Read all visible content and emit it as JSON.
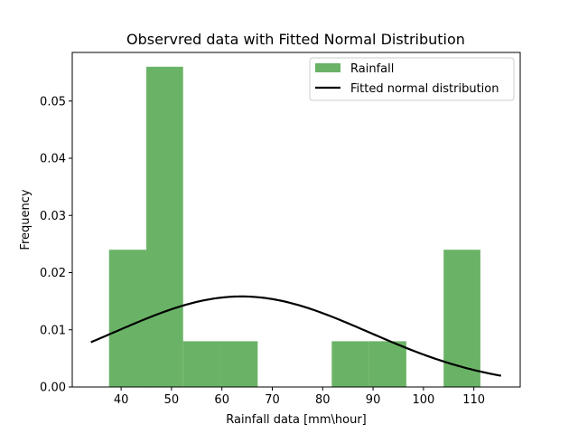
{
  "chart_data": {
    "type": "bar",
    "title": "Observred data with Fitted Normal Distribution",
    "xlabel": "Rainfall data [mm\\hour]",
    "ylabel": "Frequency",
    "xlim": [
      30.3,
      119.2
    ],
    "ylim": [
      0,
      0.0585
    ],
    "x_ticks": [
      40,
      50,
      60,
      70,
      80,
      90,
      100,
      110
    ],
    "y_ticks": [
      0.0,
      0.01,
      0.02,
      0.03,
      0.04,
      0.05
    ],
    "y_tick_labels": [
      "0.00",
      "0.01",
      "0.02",
      "0.03",
      "0.04",
      "0.05"
    ],
    "grid": false,
    "legend_position": "top-right",
    "histogram": {
      "name": "Rainfall",
      "color": "#6ab366",
      "bins": [
        {
          "x0": 37.6,
          "x1": 45.0,
          "value": 0.024
        },
        {
          "x0": 45.0,
          "x1": 52.3,
          "value": 0.056
        },
        {
          "x0": 52.3,
          "x1": 59.7,
          "value": 0.008
        },
        {
          "x0": 59.7,
          "x1": 67.1,
          "value": 0.008
        },
        {
          "x0": 67.1,
          "x1": 74.5,
          "value": 0.0
        },
        {
          "x0": 74.5,
          "x1": 81.8,
          "value": 0.0
        },
        {
          "x0": 81.8,
          "x1": 89.2,
          "value": 0.008
        },
        {
          "x0": 89.2,
          "x1": 96.6,
          "value": 0.008
        },
        {
          "x0": 96.6,
          "x1": 104.0,
          "value": 0.0
        },
        {
          "x0": 104.0,
          "x1": 111.3,
          "value": 0.024
        }
      ]
    },
    "fitted_curve": {
      "name": "Fitted normal distribution",
      "color": "#000000",
      "mean": 63.9,
      "std": 25.2,
      "x_min": 34.0,
      "x_max": 115.4
    }
  }
}
